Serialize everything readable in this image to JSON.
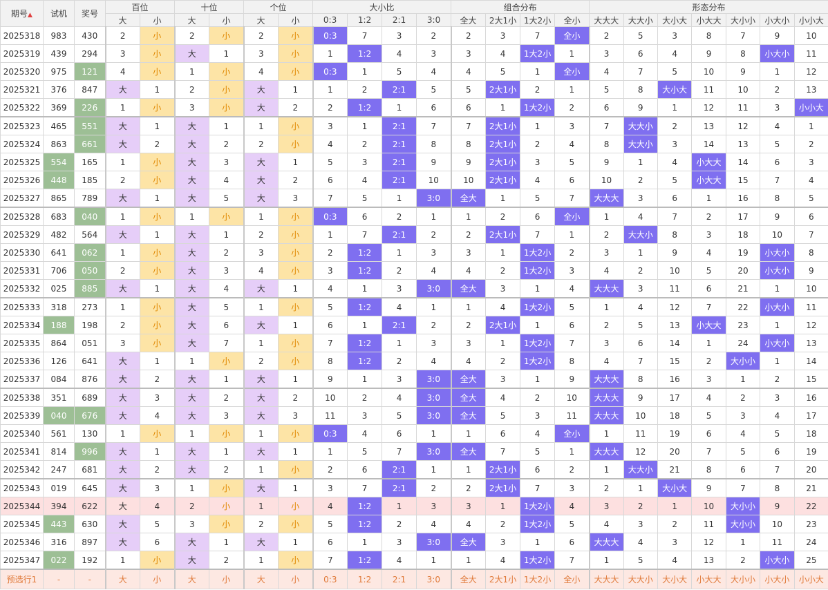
{
  "header": {
    "period": "期号",
    "test": "试机",
    "award": "奖号",
    "groups": [
      {
        "title": "百位",
        "subs": [
          "大",
          "小"
        ]
      },
      {
        "title": "十位",
        "subs": [
          "大",
          "小"
        ]
      },
      {
        "title": "个位",
        "subs": [
          "大",
          "小"
        ]
      },
      {
        "title": "大小比",
        "subs": [
          "0:3",
          "1:2",
          "2:1",
          "3:0"
        ]
      },
      {
        "title": "组合分布",
        "subs": [
          "全大",
          "2大1小",
          "1大2小",
          "全小"
        ]
      },
      {
        "title": "形态分布",
        "subs": [
          "大大大",
          "大大小",
          "大小大",
          "小大大",
          "大小小",
          "小大小",
          "小小大"
        ]
      }
    ]
  },
  "rows": [
    {
      "cells": [
        "2025318",
        "983",
        "430",
        "2",
        "小",
        "2",
        "小",
        "2",
        "小",
        "0:3",
        "7",
        "3",
        "2",
        "2",
        "3",
        "7",
        "全小",
        "2",
        "5",
        "3",
        "8",
        "7",
        "9",
        "10"
      ]
    },
    {
      "cells": [
        "2025319",
        "439",
        "294",
        "3",
        "小",
        "大",
        "1",
        "3",
        "小",
        "1",
        "1:2",
        "4",
        "3",
        "3",
        "4",
        "1大2小",
        "1",
        "3",
        "6",
        "4",
        "9",
        "8",
        "小大小",
        "11"
      ]
    },
    {
      "cells": [
        "2025320",
        "975",
        "121",
        "4",
        "小",
        "1",
        "小",
        "4",
        "小",
        "0:3",
        "1",
        "5",
        "4",
        "4",
        "5",
        "1",
        "全小",
        "4",
        "7",
        "5",
        "10",
        "9",
        "1",
        "12"
      ],
      "green": [
        2
      ]
    },
    {
      "cells": [
        "2025321",
        "376",
        "847",
        "大",
        "1",
        "2",
        "小",
        "大",
        "1",
        "1",
        "2",
        "2:1",
        "5",
        "5",
        "2大1小",
        "2",
        "1",
        "5",
        "8",
        "大小大",
        "11",
        "10",
        "2",
        "13"
      ]
    },
    {
      "cells": [
        "2025322",
        "369",
        "226",
        "1",
        "小",
        "3",
        "小",
        "大",
        "2",
        "2",
        "1:2",
        "1",
        "6",
        "6",
        "1",
        "1大2小",
        "2",
        "6",
        "9",
        "1",
        "12",
        "11",
        "3",
        "小小大"
      ],
      "green": [
        2
      ]
    },
    {
      "cells": [
        "2025323",
        "465",
        "551",
        "大",
        "1",
        "大",
        "1",
        "1",
        "小",
        "3",
        "1",
        "2:1",
        "7",
        "7",
        "2大1小",
        "1",
        "3",
        "7",
        "大大小",
        "2",
        "13",
        "12",
        "4",
        "1"
      ],
      "green": [
        2
      ]
    },
    {
      "cells": [
        "2025324",
        "863",
        "661",
        "大",
        "2",
        "大",
        "2",
        "2",
        "小",
        "4",
        "2",
        "2:1",
        "8",
        "8",
        "2大1小",
        "2",
        "4",
        "8",
        "大大小",
        "3",
        "14",
        "13",
        "5",
        "2"
      ],
      "green": [
        2
      ]
    },
    {
      "cells": [
        "2025325",
        "554",
        "165",
        "1",
        "小",
        "大",
        "3",
        "大",
        "1",
        "5",
        "3",
        "2:1",
        "9",
        "9",
        "2大1小",
        "3",
        "5",
        "9",
        "1",
        "4",
        "小大大",
        "14",
        "6",
        "3"
      ],
      "green": [
        1
      ]
    },
    {
      "cells": [
        "2025326",
        "448",
        "185",
        "2",
        "小",
        "大",
        "4",
        "大",
        "2",
        "6",
        "4",
        "2:1",
        "10",
        "10",
        "2大1小",
        "4",
        "6",
        "10",
        "2",
        "5",
        "小大大",
        "15",
        "7",
        "4"
      ],
      "green": [
        1
      ]
    },
    {
      "cells": [
        "2025327",
        "865",
        "789",
        "大",
        "1",
        "大",
        "5",
        "大",
        "3",
        "7",
        "5",
        "1",
        "3:0",
        "全大",
        "1",
        "5",
        "7",
        "大大大",
        "3",
        "6",
        "1",
        "16",
        "8",
        "5"
      ]
    },
    {
      "cells": [
        "2025328",
        "683",
        "040",
        "1",
        "小",
        "1",
        "小",
        "1",
        "小",
        "0:3",
        "6",
        "2",
        "1",
        "1",
        "2",
        "6",
        "全小",
        "1",
        "4",
        "7",
        "2",
        "17",
        "9",
        "6"
      ],
      "green": [
        2
      ]
    },
    {
      "cells": [
        "2025329",
        "482",
        "564",
        "大",
        "1",
        "大",
        "1",
        "2",
        "小",
        "1",
        "7",
        "2:1",
        "2",
        "2",
        "2大1小",
        "7",
        "1",
        "2",
        "大大小",
        "8",
        "3",
        "18",
        "10",
        "7"
      ]
    },
    {
      "cells": [
        "2025330",
        "641",
        "062",
        "1",
        "小",
        "大",
        "2",
        "3",
        "小",
        "2",
        "1:2",
        "1",
        "3",
        "3",
        "1",
        "1大2小",
        "2",
        "3",
        "1",
        "9",
        "4",
        "19",
        "小大小",
        "8"
      ],
      "green": [
        2
      ]
    },
    {
      "cells": [
        "2025331",
        "706",
        "050",
        "2",
        "小",
        "大",
        "3",
        "4",
        "小",
        "3",
        "1:2",
        "2",
        "4",
        "4",
        "2",
        "1大2小",
        "3",
        "4",
        "2",
        "10",
        "5",
        "20",
        "小大小",
        "9"
      ],
      "green": [
        2
      ]
    },
    {
      "cells": [
        "2025332",
        "025",
        "885",
        "大",
        "1",
        "大",
        "4",
        "大",
        "1",
        "4",
        "1",
        "3",
        "3:0",
        "全大",
        "3",
        "1",
        "4",
        "大大大",
        "3",
        "11",
        "6",
        "21",
        "1",
        "10"
      ],
      "green": [
        2
      ]
    },
    {
      "cells": [
        "2025333",
        "318",
        "273",
        "1",
        "小",
        "大",
        "5",
        "1",
        "小",
        "5",
        "1:2",
        "4",
        "1",
        "1",
        "4",
        "1大2小",
        "5",
        "1",
        "4",
        "12",
        "7",
        "22",
        "小大小",
        "11"
      ]
    },
    {
      "cells": [
        "2025334",
        "188",
        "198",
        "2",
        "小",
        "大",
        "6",
        "大",
        "1",
        "6",
        "1",
        "2:1",
        "2",
        "2",
        "2大1小",
        "1",
        "6",
        "2",
        "5",
        "13",
        "小大大",
        "23",
        "1",
        "12"
      ],
      "green": [
        1
      ]
    },
    {
      "cells": [
        "2025335",
        "864",
        "051",
        "3",
        "小",
        "大",
        "7",
        "1",
        "小",
        "7",
        "1:2",
        "1",
        "3",
        "3",
        "1",
        "1大2小",
        "7",
        "3",
        "6",
        "14",
        "1",
        "24",
        "小大小",
        "13"
      ]
    },
    {
      "cells": [
        "2025336",
        "126",
        "641",
        "大",
        "1",
        "1",
        "小",
        "2",
        "小",
        "8",
        "1:2",
        "2",
        "4",
        "4",
        "2",
        "1大2小",
        "8",
        "4",
        "7",
        "15",
        "2",
        "大小小",
        "1",
        "14"
      ]
    },
    {
      "cells": [
        "2025337",
        "084",
        "876",
        "大",
        "2",
        "大",
        "1",
        "大",
        "1",
        "9",
        "1",
        "3",
        "3:0",
        "全大",
        "3",
        "1",
        "9",
        "大大大",
        "8",
        "16",
        "3",
        "1",
        "2",
        "15"
      ]
    },
    {
      "cells": [
        "2025338",
        "351",
        "689",
        "大",
        "3",
        "大",
        "2",
        "大",
        "2",
        "10",
        "2",
        "4",
        "3:0",
        "全大",
        "4",
        "2",
        "10",
        "大大大",
        "9",
        "17",
        "4",
        "2",
        "3",
        "16"
      ]
    },
    {
      "cells": [
        "2025339",
        "040",
        "676",
        "大",
        "4",
        "大",
        "3",
        "大",
        "3",
        "11",
        "3",
        "5",
        "3:0",
        "全大",
        "5",
        "3",
        "11",
        "大大大",
        "10",
        "18",
        "5",
        "3",
        "4",
        "17"
      ],
      "green": [
        1,
        2
      ]
    },
    {
      "cells": [
        "2025340",
        "561",
        "130",
        "1",
        "小",
        "1",
        "小",
        "1",
        "小",
        "0:3",
        "4",
        "6",
        "1",
        "1",
        "6",
        "4",
        "全小",
        "1",
        "11",
        "19",
        "6",
        "4",
        "5",
        "18"
      ]
    },
    {
      "cells": [
        "2025341",
        "814",
        "996",
        "大",
        "1",
        "大",
        "1",
        "大",
        "1",
        "1",
        "5",
        "7",
        "3:0",
        "全大",
        "7",
        "5",
        "1",
        "大大大",
        "12",
        "20",
        "7",
        "5",
        "6",
        "19"
      ],
      "green": [
        2
      ]
    },
    {
      "cells": [
        "2025342",
        "247",
        "681",
        "大",
        "2",
        "大",
        "2",
        "1",
        "小",
        "2",
        "6",
        "2:1",
        "1",
        "1",
        "2大1小",
        "6",
        "2",
        "1",
        "大大小",
        "21",
        "8",
        "6",
        "7",
        "20"
      ]
    },
    {
      "cells": [
        "2025343",
        "019",
        "645",
        "大",
        "3",
        "1",
        "小",
        "大",
        "1",
        "3",
        "7",
        "2:1",
        "2",
        "2",
        "2大1小",
        "7",
        "3",
        "2",
        "1",
        "大小大",
        "9",
        "7",
        "8",
        "21"
      ]
    },
    {
      "cells": [
        "2025344",
        "394",
        "622",
        "大",
        "4",
        "2",
        "小",
        "1",
        "小",
        "4",
        "1:2",
        "1",
        "3",
        "3",
        "1",
        "1大2小",
        "4",
        "3",
        "2",
        "1",
        "10",
        "大小小",
        "9",
        "22"
      ],
      "pink": true
    },
    {
      "cells": [
        "2025345",
        "443",
        "630",
        "大",
        "5",
        "3",
        "小",
        "2",
        "小",
        "5",
        "1:2",
        "2",
        "4",
        "4",
        "2",
        "1大2小",
        "5",
        "4",
        "3",
        "2",
        "11",
        "大小小",
        "10",
        "23"
      ],
      "green": [
        1
      ]
    },
    {
      "cells": [
        "2025346",
        "316",
        "897",
        "大",
        "6",
        "大",
        "1",
        "大",
        "1",
        "6",
        "1",
        "3",
        "3:0",
        "全大",
        "3",
        "1",
        "6",
        "大大大",
        "4",
        "3",
        "12",
        "1",
        "11",
        "24"
      ]
    },
    {
      "cells": [
        "2025347",
        "022",
        "192",
        "1",
        "小",
        "大",
        "2",
        "1",
        "小",
        "7",
        "1:2",
        "4",
        "1",
        "1",
        "4",
        "1大2小",
        "7",
        "1",
        "5",
        "4",
        "13",
        "2",
        "小大小",
        "25"
      ],
      "green": [
        1
      ]
    }
  ],
  "footer": [
    "预选行1",
    "-",
    "-",
    "大",
    "小",
    "大",
    "小",
    "大",
    "小",
    "0:3",
    "1:2",
    "2:1",
    "3:0",
    "全大",
    "2大1小",
    "1大2小",
    "全小",
    "大大大",
    "大大小",
    "大小大",
    "小大大",
    "大小小",
    "小大小",
    "小小大"
  ]
}
